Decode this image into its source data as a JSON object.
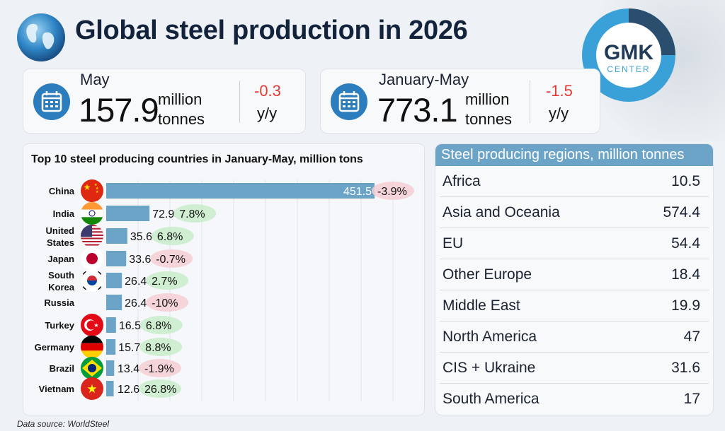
{
  "header": {
    "title": "Global steel production in 2026",
    "logo_top": "GMK",
    "logo_bottom": "CENTER"
  },
  "stats": {
    "may": {
      "label": "May",
      "value": "157.9",
      "unit_1": "million",
      "unit_2": "tonnes",
      "change": "-0.3",
      "change_unit": "y/y"
    },
    "jan_may": {
      "label": "January-May",
      "value": "773.1",
      "unit_1": "million",
      "unit_2": "tonnes",
      "change": "-1.5",
      "change_unit": "y/y"
    }
  },
  "colors": {
    "bar": "#6ca4c8",
    "positive_glow": "#c9ecc9",
    "negative_glow": "#f6cfd3",
    "negative_text": "#e53935",
    "title": "#13233c"
  },
  "chart_data": {
    "type": "bar",
    "orientation": "horizontal",
    "title": "Top 10 steel producing countries in January-May, million tons",
    "categories": [
      "China",
      "India",
      "United States",
      "Japan",
      "South Korea",
      "Russia",
      "Turkey",
      "Germany",
      "Brazil",
      "Vietnam"
    ],
    "values": [
      451.5,
      72.9,
      35.6,
      33.6,
      26.4,
      26.4,
      16.5,
      15.7,
      13.4,
      12.6
    ],
    "value_labels": [
      "451.5",
      "72.9",
      "35.6",
      "33.6",
      "26.4",
      "26.4",
      "16.5",
      "15.7",
      "13.4",
      "12.6"
    ],
    "changes": [
      "-3.9%",
      "7.8%",
      "6.8%",
      "-0.7%",
      "2.7%",
      "-10%",
      "6.8%",
      "8.8%",
      "-1.9%",
      "26.8%"
    ],
    "flags": [
      "china-flag",
      "india-flag",
      "usa-flag",
      "japan-flag",
      "south-korea-flag",
      "",
      "turkey-flag",
      "germany-flag",
      "brazil-flag",
      "vietnam-flag"
    ]
  },
  "regions": {
    "title": "Steel producing regions, million tonnes",
    "rows": [
      {
        "name": "Africa",
        "value": "10.5"
      },
      {
        "name": "Asia and Oceania",
        "value": "574.4"
      },
      {
        "name": "EU",
        "value": "54.4"
      },
      {
        "name": "Other Europe",
        "value": "18.4"
      },
      {
        "name": "Middle East",
        "value": "19.9"
      },
      {
        "name": "North America",
        "value": "47"
      },
      {
        "name": "CIS + Ukraine",
        "value": "31.6"
      },
      {
        "name": "South America",
        "value": "17"
      }
    ]
  },
  "source": "Data source: WorldSteel"
}
